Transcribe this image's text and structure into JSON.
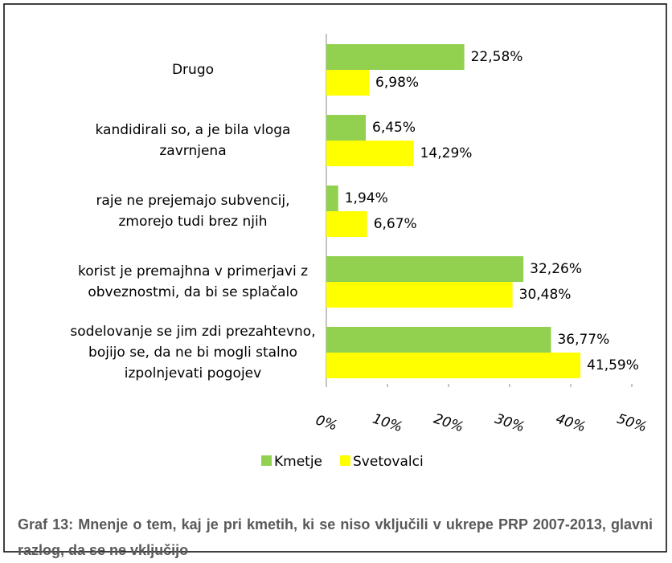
{
  "chart_data": {
    "type": "hbar",
    "categories": [
      "Drugo",
      "kandidirali so, a je bila vloga\nzavrnjena",
      "raje ne prejemajo subvencij,\nzmorejo tudi brez njih",
      "korist je premajhna v primerjavi z\nobveznostmi, da bi se splačalo",
      "sodelovanje se jim zdi prezahtevno,\nbojijo se, da ne bi mogli stalno\nizpolnjevati pogojev"
    ],
    "series": [
      {
        "name": "Kmetje",
        "color": "#92d050",
        "values": [
          22.58,
          6.45,
          1.94,
          32.26,
          36.77
        ],
        "value_labels": [
          "22,58%",
          "6,45%",
          "1,94%",
          "32,26%",
          "36,77%"
        ]
      },
      {
        "name": "Svetovalci",
        "color": "#ffff00",
        "values": [
          6.98,
          14.29,
          6.67,
          30.48,
          41.59
        ],
        "value_labels": [
          "6,98%",
          "14,29%",
          "6,67%",
          "30,48%",
          "41,59%"
        ]
      }
    ],
    "xlim": [
      0,
      50
    ],
    "xticks": [
      {
        "value": 0,
        "label": "0%"
      },
      {
        "value": 10,
        "label": "10%"
      },
      {
        "value": 20,
        "label": "20%"
      },
      {
        "value": 30,
        "label": "30%"
      },
      {
        "value": 40,
        "label": "40%"
      },
      {
        "value": 50,
        "label": "50%"
      }
    ],
    "caption": "Graf 13: Mnenje o tem, kaj je pri kmetih, ki se niso vključili v ukrepe PRP 2007-2013, glavni razlog, da se ne vključijo"
  }
}
